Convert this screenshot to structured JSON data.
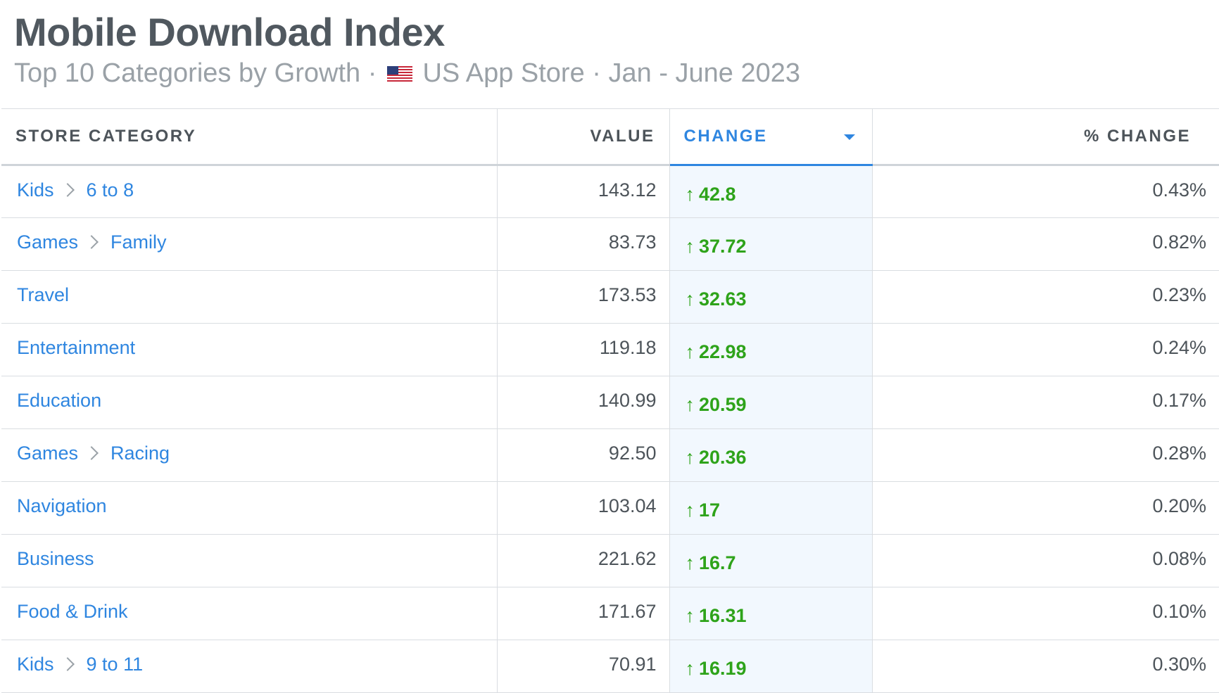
{
  "header": {
    "title": "Mobile Download Index",
    "subtitle_pre": "Top 10 Categories by Growth · ",
    "flag_icon": "us-flag-icon",
    "subtitle_post": " US App Store · Jan - June 2023"
  },
  "table": {
    "columns": {
      "category": "STORE CATEGORY",
      "value": "VALUE",
      "change": "CHANGE",
      "pct_change": "% CHANGE"
    },
    "sorted_column": "change",
    "sort_direction": "descending",
    "colors": {
      "link": "#2f86e0",
      "positive": "#2ea31a",
      "sorted_bg": "#f2f8fe"
    },
    "rows": [
      {
        "cat": "Kids",
        "sub": "6 to 8",
        "value": "143.12",
        "change": "42.8",
        "pct": "0.43%"
      },
      {
        "cat": "Games",
        "sub": "Family",
        "value": "83.73",
        "change": "37.72",
        "pct": "0.82%"
      },
      {
        "cat": "Travel",
        "sub": "",
        "value": "173.53",
        "change": "32.63",
        "pct": "0.23%"
      },
      {
        "cat": "Entertainment",
        "sub": "",
        "value": "119.18",
        "change": "22.98",
        "pct": "0.24%"
      },
      {
        "cat": "Education",
        "sub": "",
        "value": "140.99",
        "change": "20.59",
        "pct": "0.17%"
      },
      {
        "cat": "Games",
        "sub": "Racing",
        "value": "92.50",
        "change": "20.36",
        "pct": "0.28%"
      },
      {
        "cat": "Navigation",
        "sub": "",
        "value": "103.04",
        "change": "17",
        "pct": "0.20%"
      },
      {
        "cat": "Business",
        "sub": "",
        "value": "221.62",
        "change": "16.7",
        "pct": "0.08%"
      },
      {
        "cat": "Food & Drink",
        "sub": "",
        "value": "171.67",
        "change": "16.31",
        "pct": "0.10%"
      },
      {
        "cat": "Kids",
        "sub": "9 to 11",
        "value": "70.91",
        "change": "16.19",
        "pct": "0.30%"
      }
    ]
  }
}
